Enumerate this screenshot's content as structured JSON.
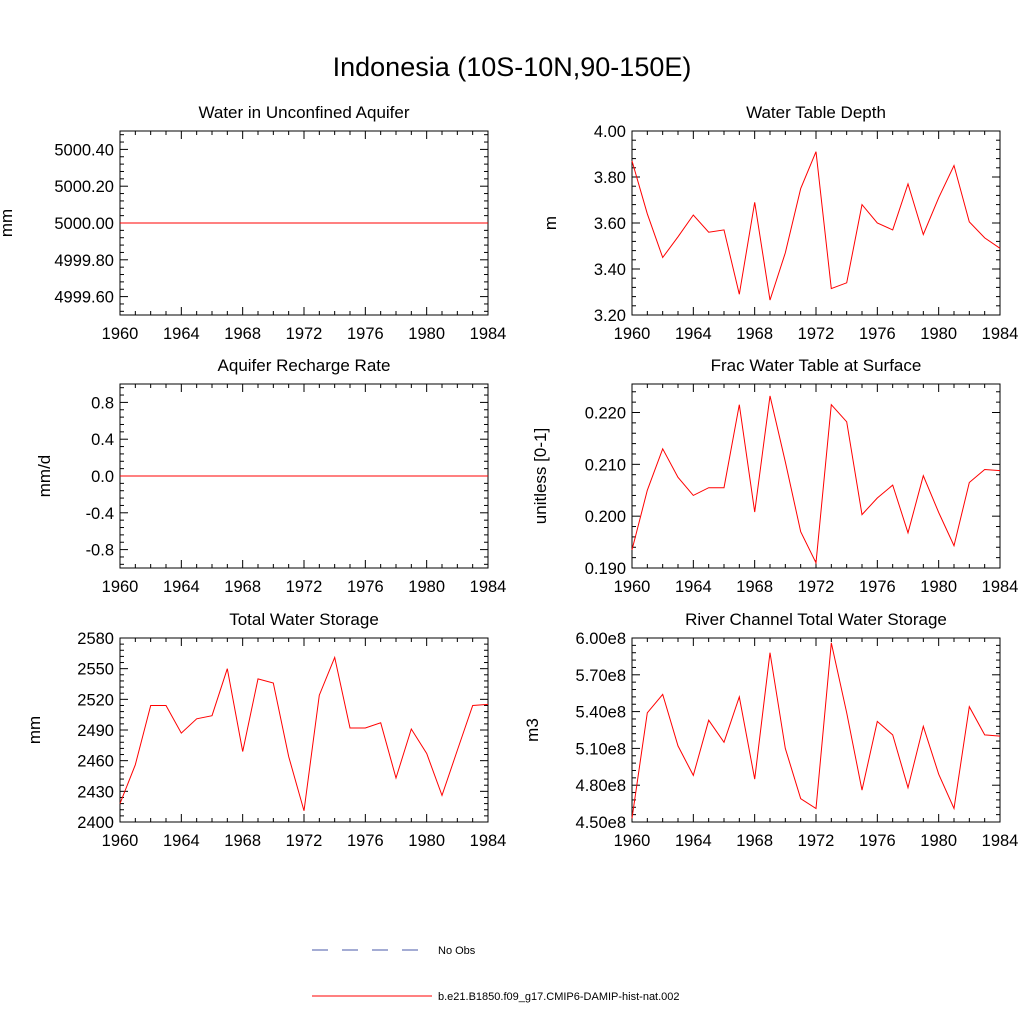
{
  "figure_title": "Indonesia (10S-10N,90-150E)",
  "colors": {
    "model": "#ff0000",
    "obs": "#4a5aa8",
    "axis": "#000000"
  },
  "legend": {
    "entries": [
      {
        "label": "No Obs",
        "style": "dashed",
        "color": "#4a5aa8"
      },
      {
        "label": "b.e21.B1850.f09_g17.CMIP6-DAMIP-hist-nat.002",
        "style": "solid",
        "color": "#ff0000"
      }
    ]
  },
  "chart_data": [
    {
      "type": "line",
      "title": "Water in Unconfined Aquifer",
      "xlabel": "",
      "ylabel": "mm",
      "xlim": [
        1960,
        1984
      ],
      "ylim": [
        4999.5,
        5000.5
      ],
      "xticks": [
        "1960",
        "1964",
        "1968",
        "1972",
        "1976",
        "1980",
        "1984"
      ],
      "yticks": [
        4999.6,
        4999.8,
        5000.0,
        5000.2,
        5000.4
      ],
      "ytick_labels": [
        "4999.60",
        "4999.80",
        "5000.00",
        "5000.20",
        "5000.40"
      ],
      "x": [
        1960,
        1961,
        1962,
        1963,
        1964,
        1965,
        1966,
        1967,
        1968,
        1969,
        1970,
        1971,
        1972,
        1973,
        1974,
        1975,
        1976,
        1977,
        1978,
        1979,
        1980,
        1981,
        1982,
        1983,
        1984
      ],
      "series": [
        {
          "values": [
            5000,
            5000,
            5000,
            5000,
            5000,
            5000,
            5000,
            5000,
            5000,
            5000,
            5000,
            5000,
            5000,
            5000,
            5000,
            5000,
            5000,
            5000,
            5000,
            5000,
            5000,
            5000,
            5000,
            5000,
            5000
          ]
        }
      ]
    },
    {
      "type": "line",
      "title": "Water Table Depth",
      "xlabel": "",
      "ylabel": "m",
      "xlim": [
        1960,
        1984
      ],
      "ylim": [
        3.2,
        4.0
      ],
      "xticks": [
        "1960",
        "1964",
        "1968",
        "1972",
        "1976",
        "1980",
        "1984"
      ],
      "yticks": [
        3.2,
        3.4,
        3.6,
        3.8,
        4.0
      ],
      "ytick_labels": [
        "3.20",
        "3.40",
        "3.60",
        "3.80",
        "4.00"
      ],
      "x": [
        1960,
        1961,
        1962,
        1963,
        1964,
        1965,
        1966,
        1967,
        1968,
        1969,
        1970,
        1971,
        1972,
        1973,
        1974,
        1975,
        1976,
        1977,
        1978,
        1979,
        1980,
        1981,
        1982,
        1983,
        1984
      ],
      "series": [
        {
          "values": [
            3.87,
            3.64,
            3.45,
            3.54,
            3.635,
            3.56,
            3.57,
            3.29,
            3.69,
            3.265,
            3.47,
            3.75,
            3.91,
            3.315,
            3.34,
            3.68,
            3.6,
            3.57,
            3.77,
            3.55,
            3.71,
            3.85,
            3.605,
            3.535,
            3.49
          ]
        }
      ]
    },
    {
      "type": "line",
      "title": "Aquifer Recharge Rate",
      "xlabel": "",
      "ylabel": "mm/d",
      "xlim": [
        1960,
        1984
      ],
      "ylim": [
        -1.0,
        1.0
      ],
      "xticks": [
        "1960",
        "1964",
        "1968",
        "1972",
        "1976",
        "1980",
        "1984"
      ],
      "yticks": [
        -0.8,
        -0.4,
        0.0,
        0.4,
        0.8
      ],
      "ytick_labels": [
        "-0.8",
        "-0.4",
        "0.0",
        "0.4",
        "0.8"
      ],
      "x": [
        1960,
        1961,
        1962,
        1963,
        1964,
        1965,
        1966,
        1967,
        1968,
        1969,
        1970,
        1971,
        1972,
        1973,
        1974,
        1975,
        1976,
        1977,
        1978,
        1979,
        1980,
        1981,
        1982,
        1983,
        1984
      ],
      "series": [
        {
          "values": [
            0,
            0,
            0,
            0,
            0,
            0,
            0,
            0,
            0,
            0,
            0,
            0,
            0,
            0,
            0,
            0,
            0,
            0,
            0,
            0,
            0,
            0,
            0,
            0,
            0
          ]
        }
      ]
    },
    {
      "type": "line",
      "title": "Frac Water Table at Surface",
      "xlabel": "",
      "ylabel": "unitless [0-1]",
      "xlim": [
        1960,
        1984
      ],
      "ylim": [
        0.19,
        0.2255
      ],
      "xticks": [
        "1960",
        "1964",
        "1968",
        "1972",
        "1976",
        "1980",
        "1984"
      ],
      "yticks": [
        0.19,
        0.2,
        0.21,
        0.22
      ],
      "ytick_labels": [
        "0.190",
        "0.200",
        "0.210",
        "0.220"
      ],
      "x": [
        1960,
        1961,
        1962,
        1963,
        1964,
        1965,
        1966,
        1967,
        1968,
        1969,
        1970,
        1971,
        1972,
        1973,
        1974,
        1975,
        1976,
        1977,
        1978,
        1979,
        1980,
        1981,
        1982,
        1983,
        1984
      ],
      "series": [
        {
          "values": [
            0.1935,
            0.205,
            0.213,
            0.2075,
            0.204,
            0.2055,
            0.2055,
            0.2215,
            0.2008,
            0.2232,
            0.2105,
            0.197,
            0.191,
            0.2215,
            0.2182,
            0.2003,
            0.2035,
            0.206,
            0.1968,
            0.2078,
            0.2007,
            0.1943,
            0.2065,
            0.209,
            0.2088
          ]
        }
      ]
    },
    {
      "type": "line",
      "title": "Total Water Storage",
      "xlabel": "",
      "ylabel": "mm",
      "xlim": [
        1960,
        1984
      ],
      "ylim": [
        2400,
        2580
      ],
      "xticks": [
        "1960",
        "1964",
        "1968",
        "1972",
        "1976",
        "1980",
        "1984"
      ],
      "yticks": [
        2400,
        2430,
        2460,
        2490,
        2520,
        2550,
        2580
      ],
      "ytick_labels": [
        "2400",
        "2430",
        "2460",
        "2490",
        "2520",
        "2550",
        "2580"
      ],
      "x": [
        1960,
        1961,
        1962,
        1963,
        1964,
        1965,
        1966,
        1967,
        1968,
        1969,
        1970,
        1971,
        1972,
        1973,
        1974,
        1975,
        1976,
        1977,
        1978,
        1979,
        1980,
        1981,
        1982,
        1983,
        1984
      ],
      "series": [
        {
          "values": [
            2418,
            2456,
            2514,
            2514,
            2487,
            2501,
            2504,
            2550,
            2469,
            2540,
            2536,
            2464,
            2411,
            2524,
            2561,
            2492,
            2492,
            2497,
            2443,
            2491,
            2467,
            2426,
            2470,
            2514,
            2515
          ]
        }
      ]
    },
    {
      "type": "line",
      "title": "River Channel Total Water Storage",
      "xlabel": "",
      "ylabel": "m3",
      "xlim": [
        1960,
        1984
      ],
      "ylim": [
        450000000,
        600000000
      ],
      "xticks": [
        "1960",
        "1964",
        "1968",
        "1972",
        "1976",
        "1980",
        "1984"
      ],
      "yticks": [
        450000000,
        480000000,
        510000000,
        540000000,
        570000000,
        600000000
      ],
      "ytick_labels": [
        "4.50e8",
        "4.80e8",
        "5.10e8",
        "5.40e8",
        "5.70e8",
        "6.00e8"
      ],
      "x": [
        1960,
        1961,
        1962,
        1963,
        1964,
        1965,
        1966,
        1967,
        1968,
        1969,
        1970,
        1971,
        1972,
        1973,
        1974,
        1975,
        1976,
        1977,
        1978,
        1979,
        1980,
        1981,
        1982,
        1983,
        1984
      ],
      "series": [
        {
          "values": [
            453000000,
            539000000,
            554000000,
            512000000,
            488000000,
            533000000,
            515000000,
            552000000,
            485000000,
            588000000,
            510000000,
            469000000,
            461000000,
            596000000,
            539000000,
            476000000,
            532000000,
            521000000,
            478000000,
            528000000,
            489000000,
            461000000,
            544000000,
            521000000,
            520000000
          ]
        }
      ]
    }
  ]
}
